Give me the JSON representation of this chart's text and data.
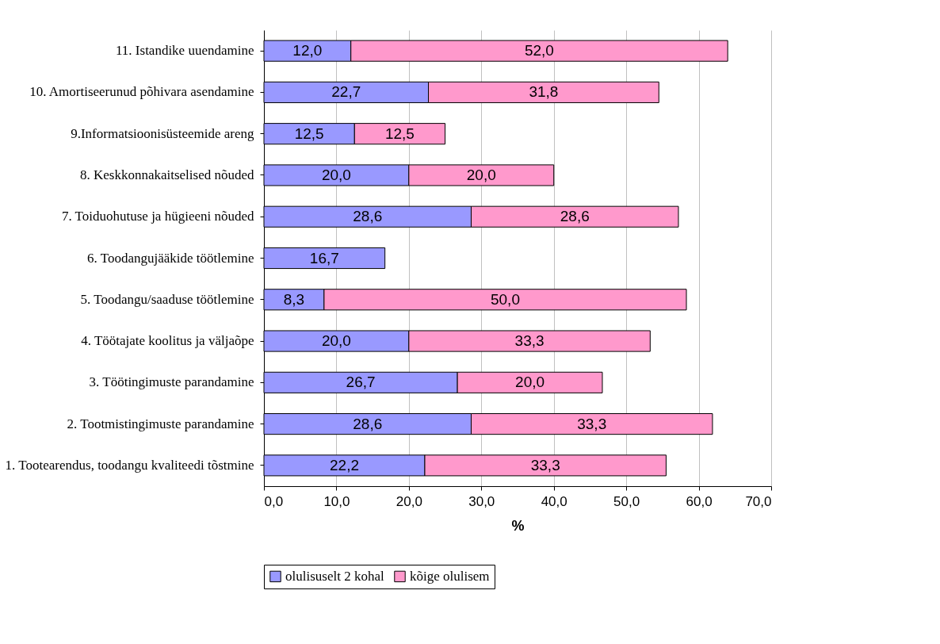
{
  "chart_data": {
    "type": "bar",
    "orientation": "horizontal",
    "stacked": true,
    "categories": [
      "11. Istandike uuendamine",
      "10. Amortiseerunud põhivara asendamine",
      "9.Informatsioonisüsteemide areng",
      "8. Keskkonnakaitselised nõuded",
      "7. Toiduohutuse ja hügieeni nõuded",
      "6. Toodangujääkide töötlemine",
      "5. Toodangu/saaduse töötlemine",
      "4. Töötajate koolitus ja väljaõpe",
      "3. Töötingimuste parandamine",
      "2. Tootmistingimuste parandamine",
      "1. Tootearendus, toodangu kvaliteedi tõstmine"
    ],
    "series": [
      {
        "name": "olulisuselt 2 kohal",
        "color": "#9999ff",
        "values": [
          12.0,
          22.7,
          12.5,
          20.0,
          28.6,
          16.7,
          8.3,
          20.0,
          26.7,
          28.6,
          22.2
        ],
        "value_labels": [
          "12,0",
          "22,7",
          "12,5",
          "20,0",
          "28,6",
          "16,7",
          "8,3",
          "20,0",
          "26,7",
          "28,6",
          "22,2"
        ]
      },
      {
        "name": "kõige olulisem",
        "color": "#ff99cc",
        "values": [
          52.0,
          31.8,
          12.5,
          20.0,
          28.6,
          null,
          50.0,
          33.3,
          20.0,
          33.3,
          33.3
        ],
        "value_labels": [
          "52,0",
          "31,8",
          "12,5",
          "20,0",
          "28,6",
          null,
          "50,0",
          "33,3",
          "20,0",
          "33,3",
          "33,3"
        ]
      }
    ],
    "xlabel": "%",
    "xlim": [
      0,
      70
    ],
    "xticks": [
      {
        "value": 0,
        "label": "0,0"
      },
      {
        "value": 10,
        "label": "10,0"
      },
      {
        "value": 20,
        "label": "20,0"
      },
      {
        "value": 30,
        "label": "30,0"
      },
      {
        "value": 40,
        "label": "40,0"
      },
      {
        "value": 50,
        "label": "50,0"
      },
      {
        "value": 60,
        "label": "60,0"
      },
      {
        "value": 70,
        "label": "70,0"
      }
    ],
    "grid": "x",
    "legend": "bottom"
  }
}
